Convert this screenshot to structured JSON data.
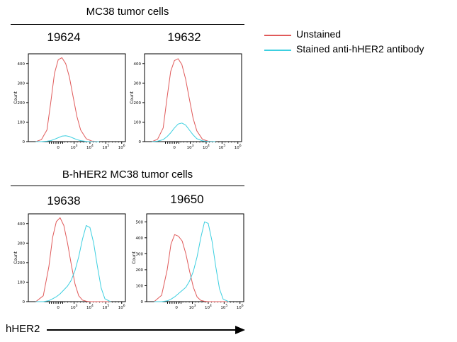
{
  "groups": [
    {
      "title": "MC38 tumor cells"
    },
    {
      "title": "B-hHER2 MC38 tumor cells"
    }
  ],
  "legend": {
    "items": [
      {
        "label": "Unstained",
        "color": "#e05a5a"
      },
      {
        "label": "Stained anti-hHER2 antibody",
        "color": "#3ccfe0"
      }
    ]
  },
  "x_axis_label": "hHER2",
  "colors": {
    "unstained": "#e05a5a",
    "stained": "#3ccfe0",
    "axis": "#000000"
  },
  "chart_data": [
    {
      "type": "line",
      "group": "MC38 tumor cells",
      "title": "19624",
      "ylabel": "Count",
      "ylim": [
        0,
        450
      ],
      "yticks": [
        "0",
        "100",
        "200",
        "300",
        "400"
      ],
      "xticks": [
        "0",
        "10^3",
        "10^4",
        "10^5",
        "10^6"
      ],
      "x": [
        -1.2,
        -0.9,
        -0.6,
        -0.4,
        -0.2,
        0,
        0.2,
        0.4,
        0.6,
        0.8,
        1.0,
        1.2,
        1.5,
        1.8,
        2.2
      ],
      "series": [
        {
          "name": "Unstained",
          "values": [
            0,
            10,
            60,
            200,
            350,
            420,
            430,
            400,
            330,
            230,
            130,
            60,
            15,
            3,
            0
          ]
        },
        {
          "name": "Stained anti-hHER2 antibody",
          "values": [
            0,
            0,
            2,
            5,
            12,
            20,
            28,
            30,
            26,
            18,
            10,
            5,
            1,
            0,
            0
          ]
        }
      ]
    },
    {
      "type": "line",
      "group": "MC38 tumor cells",
      "title": "19632",
      "ylabel": "Count",
      "ylim": [
        0,
        450
      ],
      "yticks": [
        "0",
        "100",
        "200",
        "300",
        "400"
      ],
      "xticks": [
        "0",
        "10^3",
        "10^4",
        "10^5",
        "10^6"
      ],
      "x": [
        -1.2,
        -0.9,
        -0.6,
        -0.4,
        -0.2,
        0,
        0.2,
        0.4,
        0.6,
        0.8,
        1.0,
        1.2,
        1.5,
        1.8,
        2.2
      ],
      "series": [
        {
          "name": "Unstained",
          "values": [
            0,
            12,
            70,
            220,
            360,
            415,
            425,
            395,
            320,
            220,
            120,
            55,
            12,
            2,
            0
          ]
        },
        {
          "name": "Stained anti-hHER2 antibody",
          "values": [
            0,
            2,
            10,
            25,
            45,
            70,
            90,
            95,
            85,
            60,
            35,
            15,
            4,
            1,
            0
          ]
        }
      ]
    },
    {
      "type": "line",
      "group": "B-hHER2 MC38 tumor cells",
      "title": "19638",
      "ylabel": "Count",
      "ylim": [
        0,
        450
      ],
      "yticks": [
        "0",
        "100",
        "200",
        "300",
        "400"
      ],
      "xticks": [
        "0",
        "10^3",
        "10^4",
        "10^5",
        "10^6"
      ],
      "x": [
        -1.2,
        -0.8,
        -0.5,
        -0.3,
        -0.1,
        0.1,
        0.3,
        0.5,
        0.7,
        0.9,
        1.1,
        1.3,
        1.5,
        1.7,
        1.9,
        2.1,
        2.3,
        2.5,
        2.8
      ],
      "series": [
        {
          "name": "Unstained",
          "values": [
            0,
            30,
            180,
            330,
            410,
            430,
            390,
            300,
            190,
            90,
            30,
            8,
            2,
            0,
            0,
            0,
            0,
            0,
            0
          ]
        },
        {
          "name": "Stained anti-hHER2 antibody",
          "values": [
            0,
            0,
            5,
            15,
            25,
            40,
            60,
            80,
            110,
            160,
            230,
            320,
            390,
            380,
            300,
            180,
            70,
            15,
            0
          ]
        }
      ]
    },
    {
      "type": "line",
      "group": "B-hHER2 MC38 tumor cells",
      "title": "19650",
      "ylabel": "Count",
      "ylim": [
        0,
        550
      ],
      "yticks": [
        "0",
        "100",
        "200",
        "300",
        "400",
        "500"
      ],
      "xticks": [
        "0",
        "10^3",
        "10^4",
        "10^5",
        "10^6"
      ],
      "x": [
        -1.2,
        -0.8,
        -0.5,
        -0.3,
        -0.1,
        0.1,
        0.3,
        0.5,
        0.7,
        0.9,
        1.1,
        1.3,
        1.5,
        1.7,
        1.9,
        2.1,
        2.3,
        2.5,
        2.8
      ],
      "series": [
        {
          "name": "Unstained",
          "values": [
            0,
            40,
            200,
            360,
            420,
            410,
            380,
            300,
            190,
            90,
            30,
            8,
            2,
            0,
            0,
            0,
            0,
            0,
            0
          ]
        },
        {
          "name": "Stained anti-hHER2 antibody",
          "values": [
            0,
            0,
            5,
            15,
            30,
            50,
            70,
            90,
            130,
            190,
            280,
            400,
            500,
            490,
            380,
            220,
            80,
            15,
            0
          ]
        }
      ]
    }
  ]
}
